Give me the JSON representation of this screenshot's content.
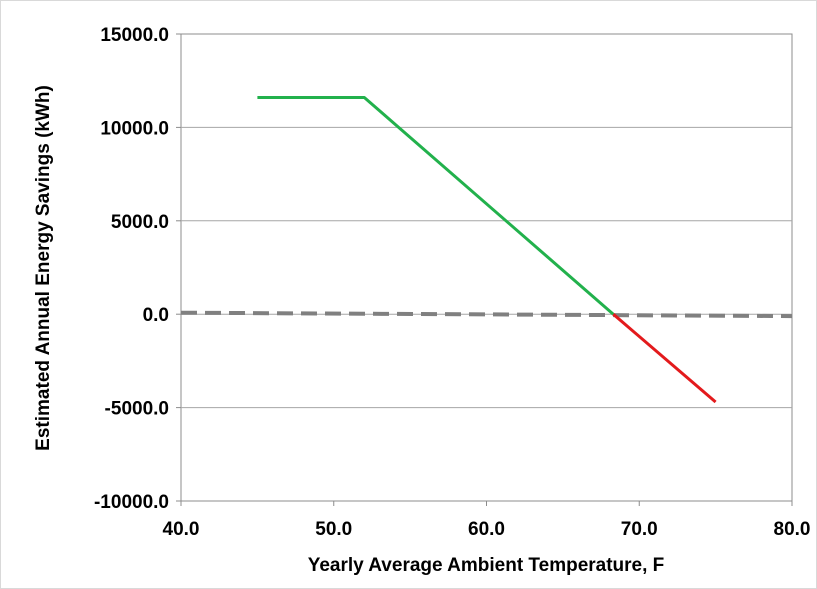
{
  "chart_data": {
    "type": "line",
    "title": "",
    "xlabel": "Yearly Average Ambient Temperature, F",
    "ylabel": "Estimated Annual Energy Savings (kWh)",
    "xlim": [
      40,
      80
    ],
    "ylim": [
      -10000,
      15000
    ],
    "x_ticks": [
      40,
      50,
      60,
      70,
      80
    ],
    "x_tick_labels": [
      "40.0",
      "50.0",
      "60.0",
      "70.0",
      "80.0"
    ],
    "y_ticks": [
      15000,
      10000,
      5000,
      0,
      -5000,
      -10000
    ],
    "y_tick_labels": [
      "15000.0",
      "10000.0",
      "5000.0",
      "0.0",
      "-5000.0",
      "-10000.0"
    ],
    "grid": "horizontal",
    "legend": "none",
    "series": [
      {
        "color": "#22b14c",
        "style": "solid",
        "x": [
          45,
          52,
          68.3
        ],
        "y": [
          11600,
          11600,
          0
        ]
      },
      {
        "color": "#e31a1c",
        "style": "solid",
        "x": [
          68.3,
          75
        ],
        "y": [
          0,
          -4700
        ]
      },
      {
        "color": "#808080",
        "style": "dashed",
        "x": [
          40,
          80
        ],
        "y": [
          80,
          -100
        ]
      }
    ]
  }
}
